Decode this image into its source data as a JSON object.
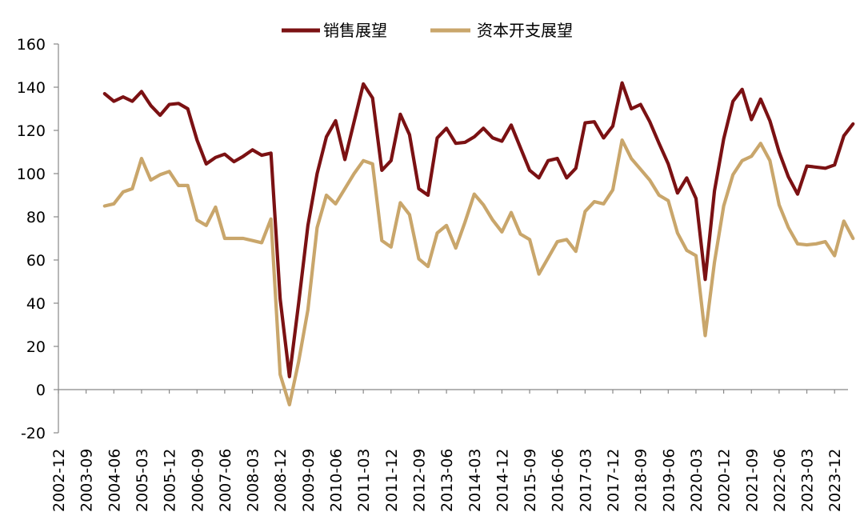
{
  "chart_data": {
    "type": "line",
    "title": "",
    "xlabel": "",
    "ylabel": "",
    "ylim": [
      -20,
      160
    ],
    "yticks": [
      -20,
      0,
      20,
      40,
      60,
      80,
      100,
      120,
      140,
      160
    ],
    "grid": false,
    "legend_position": "top-center",
    "x_tick_labels": [
      "2002-12",
      "2003-09",
      "2004-06",
      "2005-03",
      "2005-12",
      "2006-09",
      "2007-06",
      "2008-03",
      "2008-12",
      "2009-09",
      "2010-06",
      "2011-03",
      "2011-12",
      "2012-09",
      "2013-06",
      "2014-03",
      "2014-12",
      "2015-09",
      "2016-06",
      "2017-03",
      "2017-12",
      "2018-09",
      "2019-06",
      "2020-03",
      "2020-12",
      "2021-09",
      "2022-06",
      "2023-03",
      "2023-12"
    ],
    "x_start_period": "2002-12",
    "points_per_quarter": 1,
    "x": [
      "2004-03",
      "2004-06",
      "2004-09",
      "2004-12",
      "2005-03",
      "2005-06",
      "2005-09",
      "2005-12",
      "2006-03",
      "2006-06",
      "2006-09",
      "2006-12",
      "2007-03",
      "2007-06",
      "2007-09",
      "2007-12",
      "2008-03",
      "2008-06",
      "2008-09",
      "2008-12",
      "2009-03",
      "2009-06",
      "2009-09",
      "2009-12",
      "2010-03",
      "2010-06",
      "2010-09",
      "2010-12",
      "2011-03",
      "2011-06",
      "2011-09",
      "2011-12",
      "2012-03",
      "2012-06",
      "2012-09",
      "2012-12",
      "2013-03",
      "2013-06",
      "2013-09",
      "2013-12",
      "2014-03",
      "2014-06",
      "2014-09",
      "2014-12",
      "2015-03",
      "2015-06",
      "2015-09",
      "2015-12",
      "2016-03",
      "2016-06",
      "2016-09",
      "2016-12",
      "2017-03",
      "2017-06",
      "2017-09",
      "2017-12",
      "2018-03",
      "2018-06",
      "2018-09",
      "2018-12",
      "2019-03",
      "2019-06",
      "2019-09",
      "2019-12",
      "2020-03",
      "2020-06",
      "2020-09",
      "2020-12",
      "2021-03",
      "2021-06",
      "2021-09",
      "2021-12",
      "2022-03",
      "2022-06",
      "2022-09",
      "2022-12",
      "2023-03",
      "2023-06",
      "2023-09",
      "2023-12",
      "2024-03",
      "2024-06"
    ],
    "series": [
      {
        "name": "销售展望",
        "color": "#7b1113",
        "values": [
          137,
          133.5,
          135.5,
          133.5,
          138,
          131.5,
          127,
          132,
          132.5,
          130,
          115.5,
          104.5,
          107.5,
          109,
          105.5,
          108,
          111,
          108.5,
          109.5,
          42,
          6,
          40,
          76,
          100,
          117,
          124.5,
          106.5,
          124,
          141.5,
          135,
          101.5,
          106,
          127.5,
          118,
          93,
          90,
          116.5,
          121,
          114,
          114.5,
          117,
          121,
          116.5,
          115,
          122.5,
          112,
          101.5,
          98,
          106,
          107,
          98,
          102.5,
          123.5,
          124,
          116.5,
          122,
          142,
          130,
          132,
          124,
          114,
          104.5,
          91,
          98,
          88.5,
          51,
          92,
          116,
          133.5,
          139,
          125,
          134.5,
          124.5,
          110,
          98.5,
          90.5,
          103.5,
          103,
          102.5,
          104,
          117.5,
          123
        ]
      },
      {
        "name": "资本开支展望",
        "color": "#c9a66b",
        "values": [
          85,
          86,
          91.5,
          93,
          107,
          97,
          99.5,
          101,
          94.5,
          94.5,
          78.5,
          76,
          84.5,
          70,
          70,
          70,
          69,
          68,
          79,
          7,
          -7,
          13,
          37,
          75,
          90,
          86,
          93,
          100,
          106,
          104.5,
          69,
          66,
          86.5,
          81,
          60.5,
          57,
          72.5,
          76,
          65.5,
          77.5,
          90.5,
          85.5,
          78.5,
          73,
          82,
          72,
          69.5,
          53.5,
          61,
          68.5,
          69.5,
          64,
          82.5,
          87,
          86,
          92.5,
          115.5,
          107,
          102,
          97,
          90,
          87.5,
          72.5,
          64.5,
          62,
          25,
          59,
          85,
          99.5,
          106,
          108,
          114,
          106,
          85.5,
          75,
          67.5,
          67,
          67.5,
          68.5,
          62,
          78,
          70
        ]
      }
    ]
  }
}
